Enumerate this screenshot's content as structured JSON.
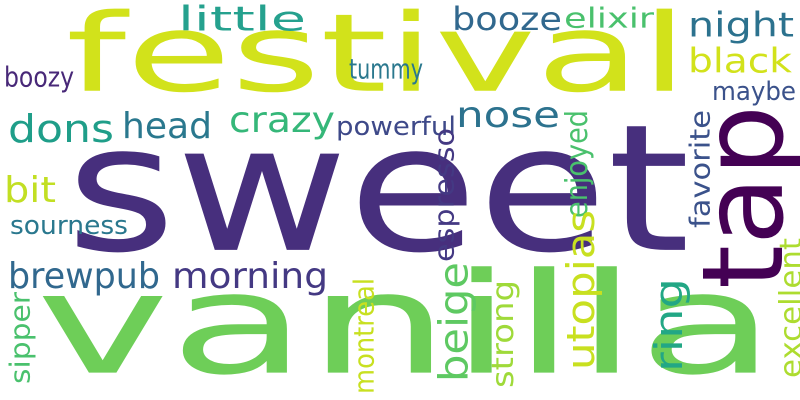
{
  "palette": {
    "background": "#ffffff",
    "yellow_green": "#d2e21b",
    "green": "#6ece58",
    "teal_green": "#35b779",
    "teal": "#1f9e89",
    "cyan_blue": "#26828e",
    "steel_blue": "#31688e",
    "indigo": "#443983",
    "purple": "#482878",
    "dark_purple": "#440154"
  },
  "words": [
    {
      "id": "sweet",
      "text": "sweet",
      "color": "#472f7d"
    },
    {
      "id": "vanilla",
      "text": "vanilla",
      "color": "#6ece58"
    },
    {
      "id": "festival",
      "text": "festival",
      "color": "#d2e21b"
    },
    {
      "id": "tap",
      "text": "tap",
      "color": "#440154"
    },
    {
      "id": "little",
      "text": "little",
      "color": "#25a18e"
    },
    {
      "id": "booze",
      "text": "booze",
      "color": "#31688e"
    },
    {
      "id": "elixir",
      "text": "elixir",
      "color": "#4ac16d"
    },
    {
      "id": "night",
      "text": "night",
      "color": "#2c728e"
    },
    {
      "id": "black",
      "text": "black",
      "color": "#d2e21b"
    },
    {
      "id": "tummy",
      "text": "tummy",
      "color": "#2a788e"
    },
    {
      "id": "boozy",
      "text": "boozy",
      "color": "#482878"
    },
    {
      "id": "maybe",
      "text": "maybe",
      "color": "#3b528b"
    },
    {
      "id": "dons",
      "text": "dons",
      "color": "#1f9e89"
    },
    {
      "id": "head",
      "text": "head",
      "color": "#2a788e"
    },
    {
      "id": "crazy",
      "text": "crazy",
      "color": "#35b779"
    },
    {
      "id": "powerful",
      "text": "powerful",
      "color": "#3e4989"
    },
    {
      "id": "nose",
      "text": "nose",
      "color": "#2c728e"
    },
    {
      "id": "bit",
      "text": "bit",
      "color": "#c2df23"
    },
    {
      "id": "sourness",
      "text": "sourness",
      "color": "#2a788e"
    },
    {
      "id": "espresso",
      "text": "espresso",
      "color": "#443983"
    },
    {
      "id": "enjoyed",
      "text": "enjoyed",
      "color": "#4ac16d"
    },
    {
      "id": "favorite",
      "text": "favorite",
      "color": "#3b528b"
    },
    {
      "id": "utopias",
      "text": "utopias",
      "color": "#c8e020"
    },
    {
      "id": "brewpub",
      "text": "brewpub",
      "color": "#31688e"
    },
    {
      "id": "morning",
      "text": "morning",
      "color": "#443983"
    },
    {
      "id": "beige",
      "text": "beige",
      "color": "#5ec962"
    },
    {
      "id": "ring",
      "text": "ring",
      "color": "#22a785"
    },
    {
      "id": "strong",
      "text": "strong",
      "color": "#9fda3a"
    },
    {
      "id": "montreal",
      "text": "montreal",
      "color": "#c8e020"
    },
    {
      "id": "sipper",
      "text": "sipper",
      "color": "#4ac16d"
    },
    {
      "id": "excellent",
      "text": "excellent",
      "color": "#addc30"
    }
  ]
}
